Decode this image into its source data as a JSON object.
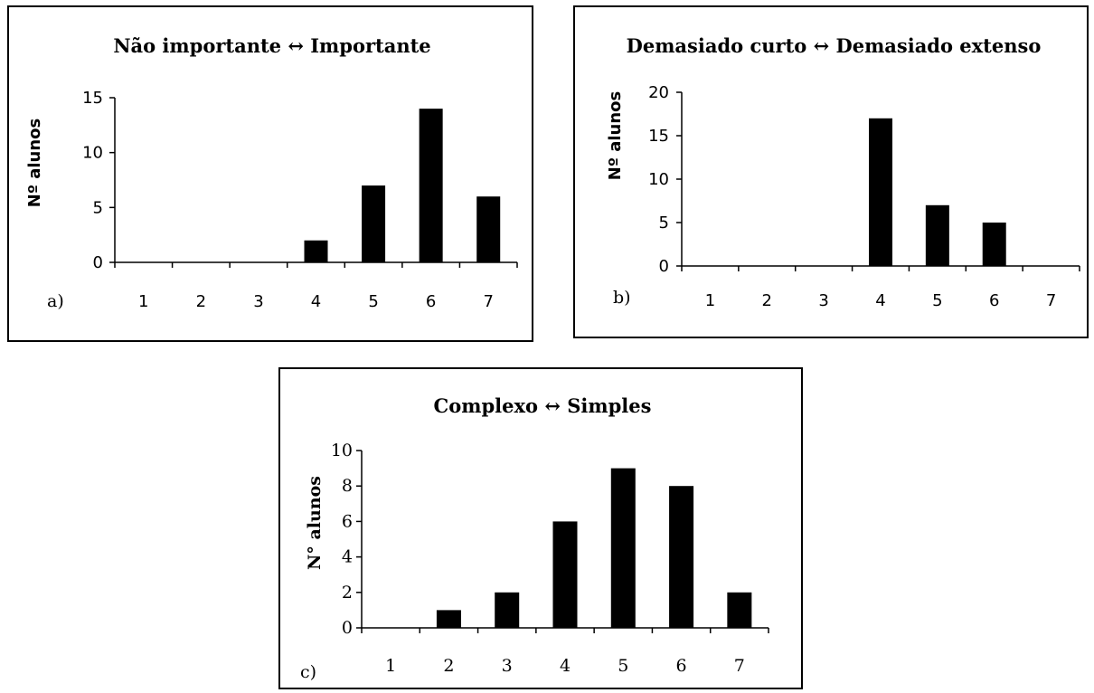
{
  "chart_data": [
    {
      "type": "bar",
      "title": "Não importante ↔ Importante",
      "panel_label": "a)",
      "ylabel": "Nº alunos",
      "xlabel": "",
      "categories": [
        "1",
        "2",
        "3",
        "4",
        "5",
        "6",
        "7"
      ],
      "values": [
        0,
        0,
        0,
        2,
        7,
        14,
        6
      ],
      "ylim": [
        0,
        15
      ],
      "yticks": [
        0,
        5,
        10,
        15
      ],
      "grid": false,
      "legend": "none",
      "bar_color": "#000000"
    },
    {
      "type": "bar",
      "title": "Demasiado curto ↔ Demasiado extenso",
      "panel_label": "b)",
      "ylabel": "Nº alunos",
      "xlabel": "",
      "categories": [
        "1",
        "2",
        "3",
        "4",
        "5",
        "6",
        "7"
      ],
      "values": [
        0,
        0,
        0,
        17,
        7,
        5,
        0
      ],
      "ylim": [
        0,
        20
      ],
      "yticks": [
        0,
        5,
        10,
        15,
        20
      ],
      "grid": false,
      "legend": "none",
      "bar_color": "#000000"
    },
    {
      "type": "bar",
      "title": "Complexo ↔ Simples",
      "panel_label": "c)",
      "ylabel": "N° alunos",
      "xlabel": "",
      "categories": [
        "1",
        "2",
        "3",
        "4",
        "5",
        "6",
        "7"
      ],
      "values": [
        0,
        1,
        2,
        6,
        9,
        8,
        2
      ],
      "ylim": [
        0,
        10
      ],
      "yticks": [
        0,
        2,
        4,
        6,
        8,
        10
      ],
      "grid": false,
      "legend": "none",
      "bar_color": "#000000"
    }
  ]
}
